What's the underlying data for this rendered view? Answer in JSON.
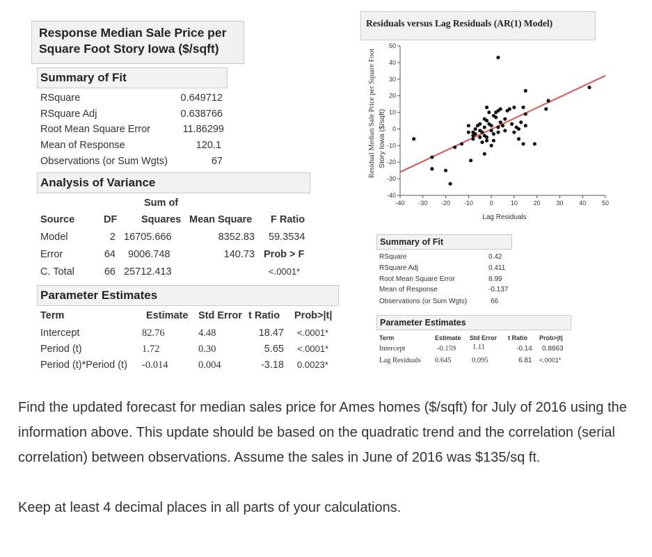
{
  "left_panel": {
    "title_line1": "Response Median Sale Price per",
    "title_line2": "Square Foot Story Iowa  ($/sqft)",
    "summary_of_fit": {
      "heading": "Summary of Fit",
      "rows": [
        {
          "label": "RSquare",
          "value": "0.649712"
        },
        {
          "label": "RSquare Adj",
          "value": "0.638766"
        },
        {
          "label": "Root Mean Square Error",
          "value": "11.86299"
        },
        {
          "label": "Mean of Response",
          "value": "120.1"
        },
        {
          "label": "Observations (or Sum Wgts)",
          "value": "67"
        }
      ]
    },
    "anova": {
      "heading": "Analysis of Variance",
      "sum_of_label": "Sum of",
      "headers": [
        "Source",
        "DF",
        "Squares",
        "Mean Square",
        "F Ratio"
      ],
      "rows": [
        {
          "source": "Model",
          "df": "2",
          "ss": "16705.666",
          "ms": "8352.83",
          "f": "59.3534"
        },
        {
          "source": "Error",
          "df": "64",
          "ss": "9006.748",
          "ms": "140.73",
          "f": "Prob > F"
        },
        {
          "source": "C. Total",
          "df": "66",
          "ss": "25712.413",
          "ms": "",
          "f": "<.0001*"
        }
      ]
    },
    "params": {
      "heading": "Parameter Estimates",
      "headers": [
        "Term",
        "Estimate",
        "Std Error",
        "t Ratio",
        "Prob>|t|"
      ],
      "rows": [
        {
          "term": "Intercept",
          "est": "82.76",
          "se": "4.48",
          "t": "18.47",
          "p": "<.0001*"
        },
        {
          "term": "Period (t)",
          "est": "1.72",
          "se": "0.30",
          "t": "5.65",
          "p": "<.0001*"
        },
        {
          "term": "Period (t)*Period (t)",
          "est": "-0.014",
          "se": "0.004",
          "t": "-3.18",
          "p": "0.0023*"
        }
      ]
    }
  },
  "chart_title": "Residuals versus Lag Residuals (AR(1) Model)",
  "chart_data": {
    "type": "scatter",
    "title": "Residuals versus Lag Residuals (AR(1) Model)",
    "xlabel": "Lag Residuals",
    "ylabel_line1": "Residual Median Sale Price per Square Foot",
    "ylabel_line2": "Story Iowa ($/sqft)",
    "xlim": [
      -40,
      50
    ],
    "ylim": [
      -40,
      50
    ],
    "xticks": [
      -40,
      -30,
      -20,
      -10,
      0,
      10,
      20,
      30,
      40,
      50
    ],
    "yticks": [
      -40,
      -30,
      -20,
      -10,
      0,
      10,
      20,
      30,
      40,
      50
    ],
    "fit_line": {
      "intercept": -0.159,
      "slope": 0.645,
      "color": "#d9534f"
    },
    "points": [
      [
        -34,
        -6
      ],
      [
        -26,
        -17
      ],
      [
        -26,
        -24
      ],
      [
        -20,
        -25
      ],
      [
        -18,
        -33
      ],
      [
        -16,
        -11
      ],
      [
        -13,
        -9
      ],
      [
        -10,
        -2
      ],
      [
        -9,
        -19
      ],
      [
        -8,
        -6
      ],
      [
        -8,
        -4
      ],
      [
        -8,
        -2
      ],
      [
        -7,
        -3
      ],
      [
        -7,
        0
      ],
      [
        -6,
        2
      ],
      [
        -5,
        -1
      ],
      [
        -5,
        3
      ],
      [
        -5,
        -5
      ],
      [
        -4,
        -2
      ],
      [
        -3,
        -4
      ],
      [
        -3,
        1
      ],
      [
        -3,
        6
      ],
      [
        -2,
        5
      ],
      [
        -2,
        -5
      ],
      [
        -2,
        -7
      ],
      [
        -1,
        3
      ],
      [
        0,
        -1
      ],
      [
        0,
        -10
      ],
      [
        0,
        2
      ],
      [
        -1,
        10
      ],
      [
        -3,
        -15
      ],
      [
        1,
        -3
      ],
      [
        1,
        -7
      ],
      [
        2,
        7
      ],
      [
        2,
        10
      ],
      [
        3,
        -2
      ],
      [
        3,
        1
      ],
      [
        3,
        11
      ],
      [
        4,
        4
      ],
      [
        4,
        12
      ],
      [
        5,
        2
      ],
      [
        6,
        -1
      ],
      [
        7,
        11
      ],
      [
        8,
        12
      ],
      [
        10,
        13
      ],
      [
        10,
        -2
      ],
      [
        11,
        1
      ],
      [
        12,
        0
      ],
      [
        12,
        -6
      ],
      [
        13,
        4
      ],
      [
        14,
        13
      ],
      [
        14,
        -9
      ],
      [
        15,
        9
      ],
      [
        15,
        2
      ],
      [
        15,
        23
      ],
      [
        19,
        -9
      ],
      [
        24,
        12
      ],
      [
        25,
        17
      ],
      [
        43,
        25
      ],
      [
        3,
        43
      ],
      [
        -10,
        2
      ],
      [
        -2,
        13
      ],
      [
        1,
        8
      ],
      [
        6,
        6
      ],
      [
        9,
        3
      ],
      [
        -4,
        -8
      ]
    ]
  },
  "right_summary": {
    "heading": "Summary of Fit",
    "rows": [
      {
        "label": "RSquare",
        "value": "0.42"
      },
      {
        "label": "RSquare Adj",
        "value": "0.411"
      },
      {
        "label": "Root Mean Square Error",
        "value": "8.99"
      },
      {
        "label": "Mean of Response",
        "value": "-0.137"
      },
      {
        "label": "Observations (or Sum Wgts)",
        "value": "66"
      }
    ]
  },
  "right_params": {
    "heading": "Parameter Estimates",
    "headers": [
      "Term",
      "Estimate",
      "Std Error",
      "t Ratio",
      "Prob>|t|"
    ],
    "rows": [
      {
        "term": "Intercept",
        "est": "-0.159",
        "se": "1.11",
        "t": "-0.14",
        "p": "0.8863"
      },
      {
        "term": "Lag Residuals",
        "est": "0.645",
        "se": "0.095",
        "t": "6.81",
        "p": "<.0001*"
      }
    ]
  },
  "question": {
    "paragraph1": "Find the updated forecast for median sales price for Ames homes ($/sqft) for July of 2016 using the information above. This update should be based on the quadratic trend and the correlation (serial correlation) between observations. Assume the sales in June of 2016 was $135/sq ft.",
    "paragraph2": "Keep at least 4 decimal places in all parts of your calculations."
  }
}
